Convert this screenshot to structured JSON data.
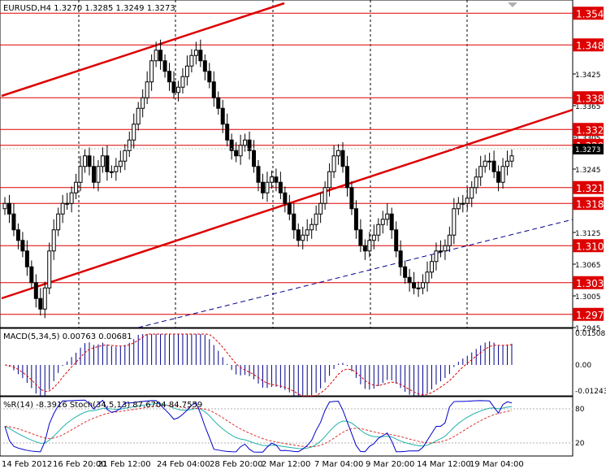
{
  "header": {
    "symbol_tf": "EURUSD,H4",
    "ohlc": "1.3270 1.3285 1.3249 1.3273"
  },
  "chart_data": [
    {
      "type": "candlestick",
      "symbol": "EURUSD",
      "timeframe": "H4",
      "ylim": [
        1.2945,
        1.3565
      ],
      "price_ticks": [
        "1.3425",
        "1.3365",
        "1.3305",
        "1.3245",
        "1.3185",
        "1.3125",
        "1.3065",
        "1.3005",
        "1.2945"
      ],
      "x_ticks": [
        "14 Feb 2012",
        "16 Feb 20:00",
        "21 Feb 12:00",
        "24 Feb 04:00",
        "28 Feb 20:00",
        "2 Mar 12:00",
        "7 Mar 04:00",
        "9 Mar 20:00",
        "14 Mar 12:00",
        "19 Mar 04:00"
      ],
      "current_price": "1.3273",
      "levels": [
        {
          "label": "1.354",
          "value": 1.354
        },
        {
          "label": "1.348",
          "value": 1.348
        },
        {
          "label": "1.338",
          "value": 1.338
        },
        {
          "label": "1.332",
          "value": 1.332
        },
        {
          "label": "1.329",
          "value": 1.329
        },
        {
          "label": "1.321",
          "value": 1.321
        },
        {
          "label": "1.318",
          "value": 1.318
        },
        {
          "label": "1.310",
          "value": 1.31
        },
        {
          "label": "1.303",
          "value": 1.303
        },
        {
          "label": "1.297",
          "value": 1.297
        }
      ],
      "close_series": [
        1.318,
        1.316,
        1.313,
        1.311,
        1.309,
        1.306,
        1.303,
        1.3,
        1.298,
        1.302,
        1.309,
        1.313,
        1.316,
        1.318,
        1.318,
        1.32,
        1.322,
        1.325,
        1.327,
        1.325,
        1.322,
        1.325,
        1.327,
        1.324,
        1.324,
        1.325,
        1.326,
        1.328,
        1.33,
        1.333,
        1.336,
        1.338,
        1.341,
        1.345,
        1.347,
        1.345,
        1.343,
        1.341,
        1.339,
        1.34,
        1.342,
        1.344,
        1.346,
        1.347,
        1.345,
        1.343,
        1.341,
        1.338,
        1.336,
        1.333,
        1.33,
        1.328,
        1.327,
        1.329,
        1.33,
        1.328,
        1.325,
        1.322,
        1.32,
        1.322,
        1.323,
        1.322,
        1.32,
        1.318,
        1.316,
        1.313,
        1.311,
        1.312,
        1.313,
        1.314,
        1.316,
        1.318,
        1.321,
        1.324,
        1.327,
        1.328,
        1.325,
        1.321,
        1.317,
        1.313,
        1.31,
        1.309,
        1.311,
        1.312,
        1.314,
        1.315,
        1.316,
        1.313,
        1.309,
        1.306,
        1.304,
        1.303,
        1.302,
        1.302,
        1.303,
        1.305,
        1.307,
        1.309,
        1.309,
        1.31,
        1.312,
        1.317,
        1.318,
        1.318,
        1.319,
        1.321,
        1.323,
        1.325,
        1.326,
        1.326,
        1.324,
        1.322,
        1.325,
        1.326,
        1.327
      ]
    },
    {
      "type": "histogram",
      "label": "MACD(5,34,5) 0.00763 0.00681",
      "y_ticks": [
        "0.01508",
        "0.00",
        "-0.01243"
      ],
      "ylim": [
        -0.01243,
        0.01508
      ]
    },
    {
      "type": "line",
      "label": "%R(14) -8.3916 Stoch(34,5,13) 87.6704 84.7559",
      "y_ticks": [
        "80",
        "20"
      ],
      "ylim": [
        0,
        100
      ]
    }
  ],
  "colors": {
    "background": "#ffffff",
    "candle": "#000000",
    "level": "#dd0000",
    "trend_up": "#dd0000",
    "trend_dashed": "#00008b",
    "macd_hist": "#00008b",
    "macd_signal": "#dd0000",
    "wpr": "#0000cc",
    "stoch_main": "#20b2aa",
    "stoch_signal": "#dd3333"
  }
}
